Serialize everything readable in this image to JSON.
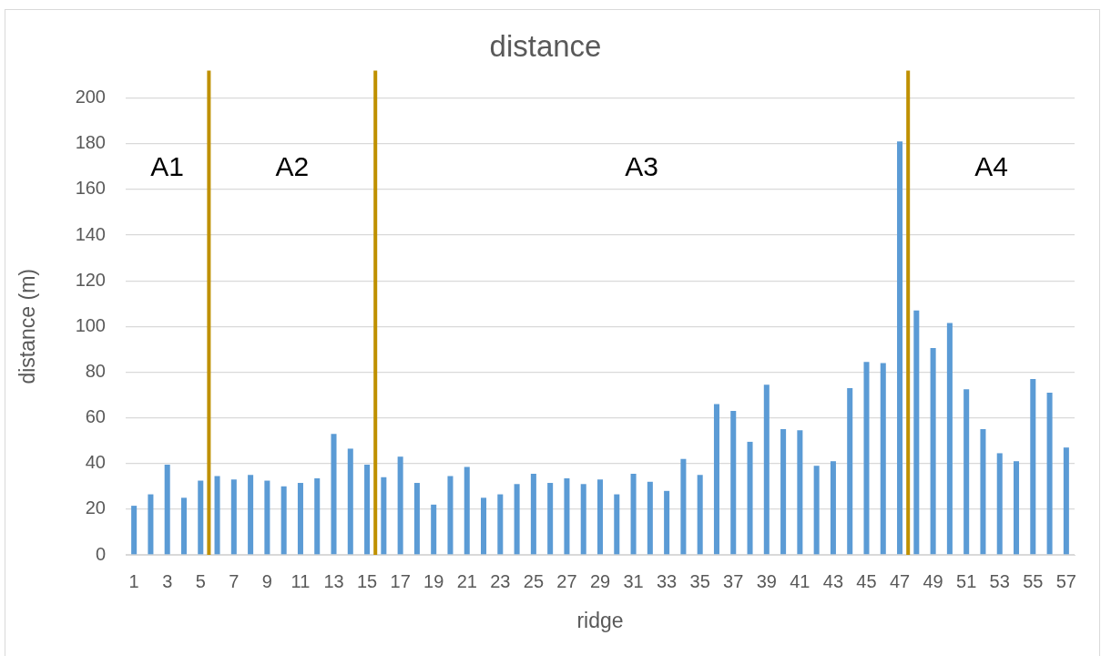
{
  "chart_data": {
    "type": "bar",
    "title": "distance",
    "xlabel": "ridge",
    "ylabel": "distance (m)",
    "x": [
      1,
      2,
      3,
      4,
      5,
      6,
      7,
      8,
      9,
      10,
      11,
      12,
      13,
      14,
      15,
      16,
      17,
      18,
      19,
      20,
      21,
      22,
      23,
      24,
      25,
      26,
      27,
      28,
      29,
      30,
      31,
      32,
      33,
      34,
      35,
      36,
      37,
      38,
      39,
      40,
      41,
      42,
      43,
      44,
      45,
      46,
      47,
      48,
      49,
      50,
      51,
      52,
      53,
      54,
      55,
      56,
      57
    ],
    "values": [
      21.5,
      26.5,
      39.5,
      25,
      32.5,
      34.5,
      33,
      35,
      32.5,
      30,
      31.5,
      33.5,
      53,
      46.5,
      39.5,
      34,
      43,
      31.5,
      22,
      34.5,
      38.5,
      25,
      26.5,
      31,
      35.5,
      31.5,
      33.5,
      31,
      33,
      26.5,
      35.5,
      32,
      28,
      42,
      35,
      66,
      63,
      49.5,
      74.5,
      55,
      54.5,
      39,
      41,
      73,
      84.5,
      84,
      181,
      107,
      90.5,
      101.5,
      72.5,
      55,
      44.5,
      41,
      77,
      71,
      47
    ],
    "color": "#5b9bd5",
    "xlim": [
      0.5,
      57.5
    ],
    "xticks": [
      1,
      3,
      5,
      7,
      9,
      11,
      13,
      15,
      17,
      19,
      21,
      23,
      25,
      27,
      29,
      31,
      33,
      35,
      37,
      39,
      41,
      43,
      45,
      47,
      49,
      51,
      53,
      55,
      57
    ],
    "ylim": [
      0,
      200
    ],
    "yticks": [
      0,
      20,
      40,
      60,
      80,
      100,
      120,
      140,
      160,
      180,
      200
    ],
    "grid": "y",
    "ref_lines": [
      {
        "axis": "x",
        "value": 5.5,
        "color": "#bf9000"
      },
      {
        "axis": "x",
        "value": 15.5,
        "color": "#bf9000"
      },
      {
        "axis": "x",
        "value": 47.5,
        "color": "#bf9000"
      }
    ],
    "annotations": [
      "A1",
      "A2",
      "A3",
      "A4"
    ]
  }
}
